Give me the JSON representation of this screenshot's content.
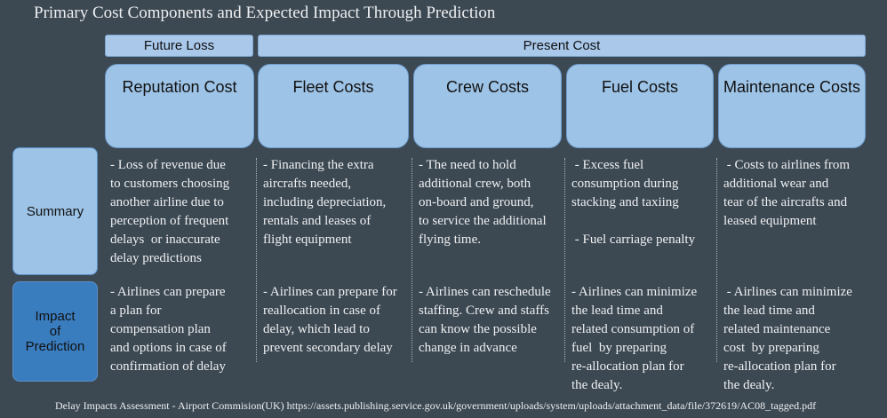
{
  "title": "Primary Cost Components and Expected Impact Through Prediction",
  "groups": [
    {
      "label": "Future Loss"
    },
    {
      "label": "Present Cost"
    }
  ],
  "row_labels": {
    "summary": [
      "Summary"
    ],
    "impact": [
      "Impact",
      "of",
      "Prediction"
    ]
  },
  "columns": [
    {
      "name": "Reputation Cost",
      "summary": [
        [
          "- Loss of revenue due",
          "to customers choosing",
          "another airline due to",
          "perception of frequent",
          "delays  or inaccurate",
          "delay predictions"
        ]
      ],
      "impact": [
        [
          "- Airlines can prepare",
          "a plan for",
          "compensation plan",
          "and options in case of",
          "confirmation of delay"
        ]
      ]
    },
    {
      "name": "Fleet Costs",
      "summary": [
        [
          "- Financing the extra",
          "aircrafts needed,",
          "including depreciation,",
          "rentals and leases of",
          "flight equipment"
        ]
      ],
      "impact": [
        [
          "- Airlines can prepare for",
          "reallocation in case of",
          "delay, which lead to",
          "prevent secondary delay"
        ]
      ]
    },
    {
      "name": "Crew Costs",
      "summary": [
        [
          "- The need to hold",
          "additional crew, both",
          "on-board and ground,",
          "to service the additional",
          "flying time."
        ]
      ],
      "impact": [
        [
          "- Airlines can reschedule",
          "staffing. Crew and staffs",
          "can know the possible",
          "change in advance"
        ]
      ]
    },
    {
      "name": "Fuel Costs",
      "summary": [
        [
          " - Excess fuel",
          "consumption during",
          "stacking and taxiing"
        ],
        [
          " - Fuel carriage penalty"
        ]
      ],
      "impact": [
        [
          "- Airlines can minimize",
          "the lead time and",
          "related consumption of",
          "fuel  by preparing",
          "re-allocation plan for",
          "the dealy."
        ]
      ]
    },
    {
      "name": "Maintenance Costs",
      "summary": [
        [
          " - Costs to airlines from",
          "additional wear and",
          "tear of the aircrafts and",
          "leased equipment"
        ]
      ],
      "impact": [
        [
          " - Airlines can minimize",
          "the lead time and",
          "related maintenance",
          "cost  by preparing",
          "re-allocation plan for",
          "the dealy."
        ]
      ]
    }
  ],
  "source": "Delay Impacts Assessment - Airport Commision(UK) https://assets.publishing.service.gov.uk/government/uploads/system/uploads/attachment_data/file/372619/AC08_tagged.pdf"
}
